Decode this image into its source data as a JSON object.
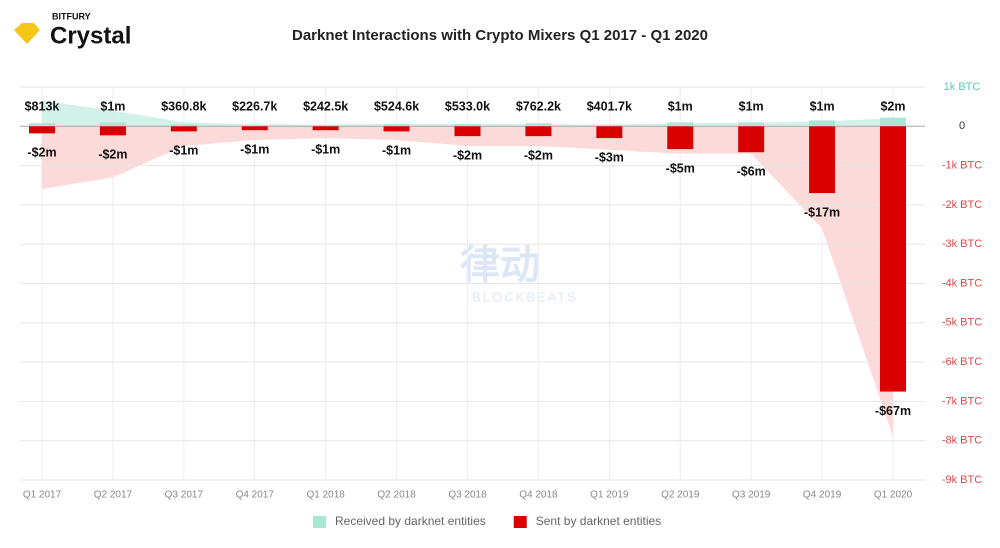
{
  "chart_data": {
    "type": "bar",
    "brand": "BITFURY",
    "product": "Crystal",
    "title": "Darknet Interactions with Crypto Mixers Q1 2017 - Q1 2020",
    "watermark": "律动",
    "watermark_sub": "BLOCKBEATS",
    "categories": [
      "Q1 2017",
      "Q2 2017",
      "Q3 2017",
      "Q4 2017",
      "Q1 2018",
      "Q2 2018",
      "Q3 2018",
      "Q4 2018",
      "Q1 2019",
      "Q2 2019",
      "Q3 2019",
      "Q4 2019",
      "Q1 2020"
    ],
    "ylim": [
      -9000,
      1000
    ],
    "yticks": [
      {
        "value": 1000,
        "label": "1k BTC"
      },
      0,
      {
        "value": -1000,
        "label": "-1k BTC"
      },
      {
        "value": -2000,
        "label": "-2k BTC"
      },
      {
        "value": -3000,
        "label": "-3k BTC"
      },
      {
        "value": -4000,
        "label": "-4k BTC"
      },
      {
        "value": -5000,
        "label": "-5k BTC"
      },
      {
        "value": -6000,
        "label": "-6k BTC"
      },
      {
        "value": -7000,
        "label": "-7k BTC"
      },
      {
        "value": -8000,
        "label": "-8k BTC"
      },
      {
        "value": -9000,
        "label": "-9k BTC"
      }
    ],
    "grid": true,
    "series": [
      {
        "name": "Received by darknet entities",
        "color": "#a8e6d6",
        "values": [
          80,
          100,
          50,
          30,
          30,
          60,
          60,
          80,
          40,
          100,
          100,
          150,
          220
        ],
        "labels": [
          "$813k",
          "$1m",
          "$360.8k",
          "$226.7k",
          "$242.5k",
          "$524.6k",
          "$533.0k",
          "$762.2k",
          "$401.7k",
          "$1m",
          "$1m",
          "$1m",
          "$2m"
        ]
      },
      {
        "name": "Sent by darknet entities",
        "color": "#d90000",
        "values": [
          -180,
          -230,
          -130,
          -100,
          -100,
          -130,
          -250,
          -250,
          -300,
          -580,
          -660,
          -1700,
          -6750
        ],
        "labels": [
          "-$2m",
          "-$2m",
          "-$1m",
          "-$1m",
          "-$1m",
          "-$1m",
          "-$2m",
          "-$2m",
          "-$3m",
          "-$5m",
          "-$6m",
          "-$17m",
          "-$67m"
        ]
      }
    ],
    "areas": [
      {
        "color": "#c9efe5",
        "values": [
          650,
          400,
          100,
          50,
          40,
          60,
          60,
          50,
          40,
          80,
          90,
          130,
          200
        ]
      },
      {
        "color": "#fbd3d3",
        "values": [
          -1600,
          -1300,
          -500,
          -350,
          -300,
          -350,
          -500,
          -500,
          -600,
          -700,
          -700,
          -2600,
          -7900
        ]
      }
    ]
  }
}
